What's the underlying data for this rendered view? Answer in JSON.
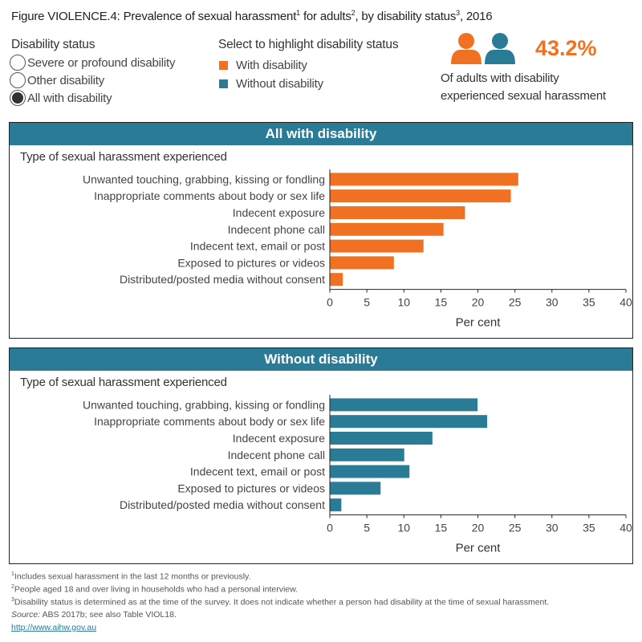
{
  "title": {
    "text": "Figure VIOLENCE.4: Prevalence of sexual harassment",
    "sup1": "1",
    "mid1": " for adults",
    "sup2": "2",
    "mid2": ", by disability status",
    "sup3": "3",
    "end": ", 2016"
  },
  "filter": {
    "heading": "Disability status",
    "options": [
      {
        "label": "Severe or profound disability",
        "selected": false
      },
      {
        "label": "Other disability",
        "selected": false
      },
      {
        "label": "All with disability",
        "selected": true
      }
    ]
  },
  "highlight": {
    "heading": "Select to highlight disability status",
    "items": [
      {
        "label": "With disability",
        "color": "#f07122"
      },
      {
        "label": "Without disability",
        "color": "#2a7b96"
      }
    ]
  },
  "kpi": {
    "icon": "people-icon",
    "value": "43.2%",
    "line1": "Of adults with disability",
    "line2": "experienced sexual harassment"
  },
  "colors": {
    "with": "#f07122",
    "without": "#2a7b96",
    "header": "#2a7b96"
  },
  "chart_data": [
    {
      "type": "bar",
      "orientation": "horizontal",
      "title": "All with disability",
      "ylabel": "Type of sexual harassment experienced",
      "xlabel": "Per cent",
      "xlim": [
        0,
        40
      ],
      "xticks": [
        0,
        5,
        10,
        15,
        20,
        25,
        30,
        35,
        40
      ],
      "color": "#f07122",
      "categories": [
        "Unwanted touching, grabbing, kissing or fondling",
        "Inappropriate comments about body or sex life",
        "Indecent exposure",
        "Indecent phone call",
        "Indecent text, email or post",
        "Exposed to pictures or videos",
        "Distributed/posted media without consent"
      ],
      "values": [
        25.4,
        24.4,
        18.2,
        15.3,
        12.6,
        8.6,
        1.7
      ]
    },
    {
      "type": "bar",
      "orientation": "horizontal",
      "title": "Without disability",
      "ylabel": "Type of sexual harassment experienced",
      "xlabel": "Per cent",
      "xlim": [
        0,
        40
      ],
      "xticks": [
        0,
        5,
        10,
        15,
        20,
        25,
        30,
        35,
        40
      ],
      "color": "#2a7b96",
      "categories": [
        "Unwanted touching, grabbing, kissing or fondling",
        "Inappropriate comments about body or sex life",
        "Indecent exposure",
        "Indecent phone call",
        "Indecent text, email or post",
        "Exposed to pictures or videos",
        "Distributed/posted media without consent"
      ],
      "values": [
        19.9,
        21.2,
        13.8,
        10.0,
        10.7,
        6.8,
        1.5
      ]
    }
  ],
  "footnotes": {
    "n1_sup": "1",
    "n1": "Includes sexual harassment in the last 12 months or previously.",
    "n2_sup": "2",
    "n2": "People aged 18 and over living in households who had a personal interview.",
    "n3_sup": "3",
    "n3": "Disability status is determined as at the time of the survey. It does not indicate whether a person had disability at the time of sexual harassment.",
    "source_label": "Source:",
    "source": " ABS 2017b; see also Table VIOL18.",
    "link": "http://www.aihw.gov.au"
  }
}
